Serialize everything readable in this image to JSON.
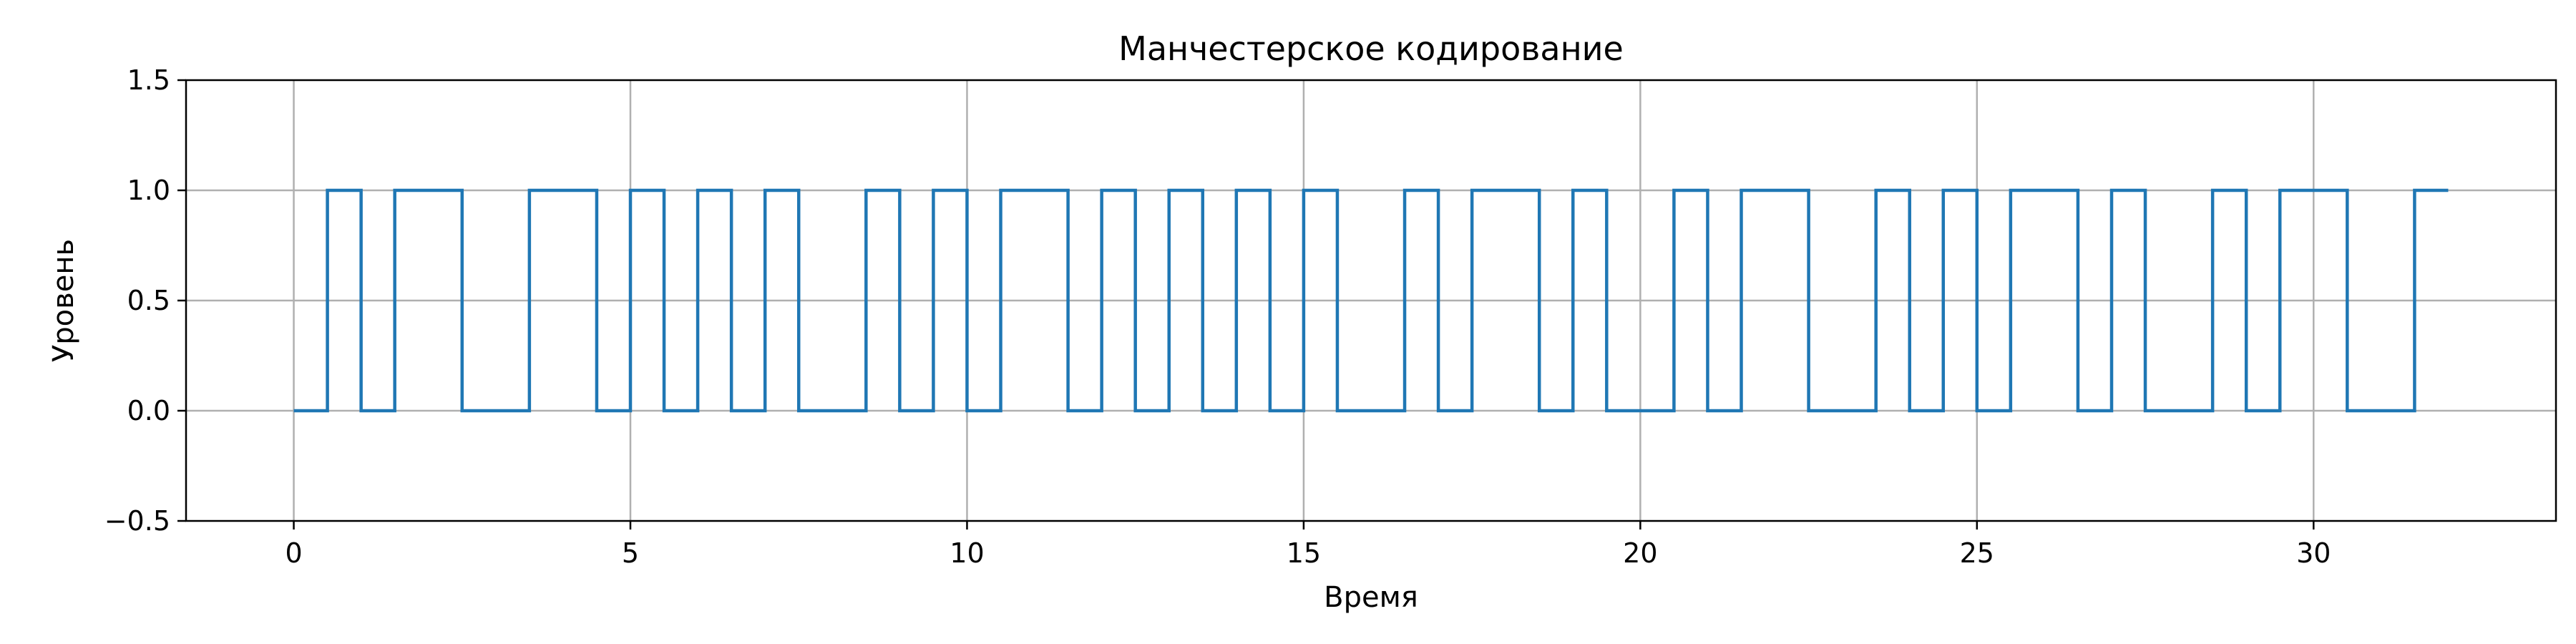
{
  "chart_data": {
    "type": "line",
    "step": "post",
    "title": "Манчестерское кодирование",
    "xlabel": "Время",
    "ylabel": "Уровень",
    "xlim": [
      -1.6,
      33.6
    ],
    "ylim": [
      -0.5,
      1.5
    ],
    "xticks": [
      0,
      5,
      10,
      15,
      20,
      25,
      30
    ],
    "yticks": [
      -0.5,
      0.0,
      0.5,
      1.0,
      1.5
    ],
    "xtick_labels": [
      "0",
      "5",
      "10",
      "15",
      "20",
      "25",
      "30"
    ],
    "ytick_labels": [
      "−0.5",
      "0.0",
      "0.5",
      "1.0",
      "1.5"
    ],
    "grid": true,
    "legend": false,
    "color": "#1f77b4",
    "series": [
      {
        "x": [
          0.0,
          0.5,
          1.0,
          1.5,
          2.0,
          2.5,
          3.0,
          3.5,
          4.0,
          4.5,
          5.0,
          5.5,
          6.0,
          6.5,
          7.0,
          7.5,
          8.0,
          8.5,
          9.0,
          9.5,
          10.0,
          10.5,
          11.0,
          11.5,
          12.0,
          12.5,
          13.0,
          13.5,
          14.0,
          14.5,
          15.0,
          15.5,
          16.0,
          16.5,
          17.0,
          17.5,
          18.0,
          18.5,
          19.0,
          19.5,
          20.0,
          20.5,
          21.0,
          21.5,
          22.0,
          22.5,
          23.0,
          23.5,
          24.0,
          24.5,
          25.0,
          25.5,
          26.0,
          26.5,
          27.0,
          27.5,
          28.0,
          28.5,
          29.0,
          29.5,
          30.0,
          30.5,
          31.0,
          31.5,
          32.0
        ],
        "y": [
          0,
          1,
          0,
          1,
          1,
          0,
          0,
          1,
          1,
          0,
          1,
          0,
          1,
          0,
          1,
          0,
          0,
          1,
          0,
          1,
          0,
          1,
          1,
          0,
          1,
          0,
          1,
          0,
          1,
          0,
          1,
          0,
          0,
          1,
          0,
          1,
          1,
          0,
          1,
          0,
          0,
          1,
          0,
          1,
          1,
          0,
          0,
          1,
          0,
          1,
          0,
          1,
          1,
          0,
          1,
          0,
          0,
          1,
          0,
          1,
          1,
          0,
          0,
          1,
          1
        ]
      }
    ]
  }
}
